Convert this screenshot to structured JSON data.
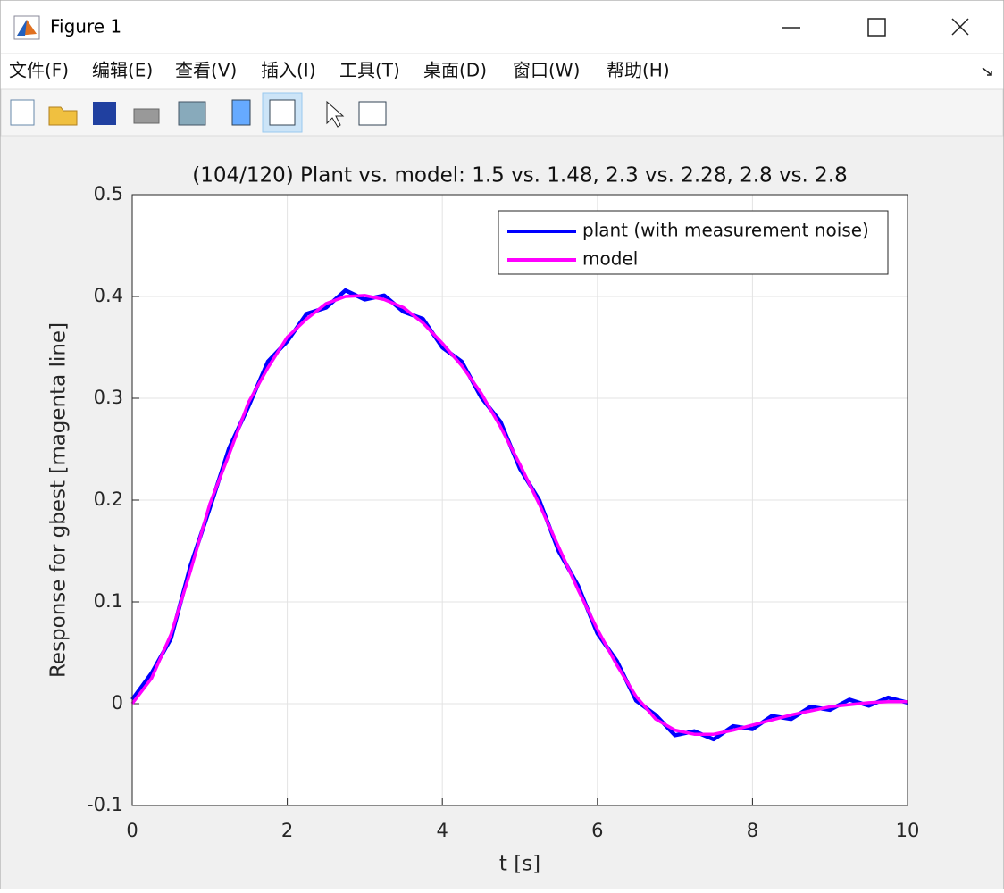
{
  "window": {
    "title": "Figure 1",
    "menu": [
      "文件(F)",
      "编辑(E)",
      "查看(V)",
      "插入(I)",
      "工具(T)",
      "桌面(D)",
      "窗口(W)",
      "帮助(H)"
    ]
  },
  "chart_data": {
    "type": "line",
    "title": "(104/120) Plant vs. model: 1.5 vs. 1.48, 2.3 vs. 2.28, 2.8 vs. 2.8",
    "x_label": "t [s]",
    "y_label": "Response for gbest [magenta line]",
    "x": [
      0,
      0.25,
      0.5,
      0.75,
      1,
      1.25,
      1.5,
      1.75,
      2,
      2.25,
      2.5,
      2.75,
      3,
      3.25,
      3.5,
      3.75,
      4,
      4.25,
      4.5,
      4.75,
      5,
      5.25,
      5.5,
      5.75,
      6,
      6.25,
      6.5,
      6.75,
      7,
      7.25,
      7.5,
      7.75,
      8,
      8.25,
      8.5,
      8.75,
      9,
      9.25,
      9.5,
      9.75,
      10
    ],
    "series": [
      {
        "name": "plant (with measurement noise)",
        "color": "#0000ff",
        "values": [
          0.004,
          0.03,
          0.064,
          0.135,
          0.192,
          0.251,
          0.292,
          0.336,
          0.356,
          0.383,
          0.389,
          0.406,
          0.397,
          0.401,
          0.385,
          0.378,
          0.35,
          0.336,
          0.301,
          0.277,
          0.231,
          0.2,
          0.15,
          0.116,
          0.069,
          0.042,
          0.003,
          -0.011,
          -0.031,
          -0.027,
          -0.035,
          -0.022,
          -0.025,
          -0.012,
          -0.015,
          -0.003,
          -0.006,
          0.004,
          -0.002,
          0.006,
          0.001
        ]
      },
      {
        "name": "model",
        "color": "#ff00ff",
        "values": [
          0,
          0.025,
          0.068,
          0.13,
          0.196,
          0.245,
          0.296,
          0.33,
          0.36,
          0.378,
          0.393,
          0.4,
          0.401,
          0.397,
          0.389,
          0.374,
          0.354,
          0.332,
          0.305,
          0.272,
          0.235,
          0.196,
          0.154,
          0.112,
          0.073,
          0.038,
          0.007,
          -0.015,
          -0.026,
          -0.03,
          -0.03,
          -0.026,
          -0.021,
          -0.016,
          -0.011,
          -0.007,
          -0.003,
          -0.001,
          0.001,
          0.002,
          0.002
        ]
      }
    ],
    "xlim": [
      0,
      10
    ],
    "xticks": [
      0,
      2,
      4,
      6,
      8,
      10
    ],
    "ylim": [
      -0.1,
      0.5
    ],
    "yticks": [
      -0.1,
      0,
      0.1,
      0.2,
      0.3,
      0.4,
      0.5
    ],
    "grid": true,
    "legend": "upper right"
  }
}
